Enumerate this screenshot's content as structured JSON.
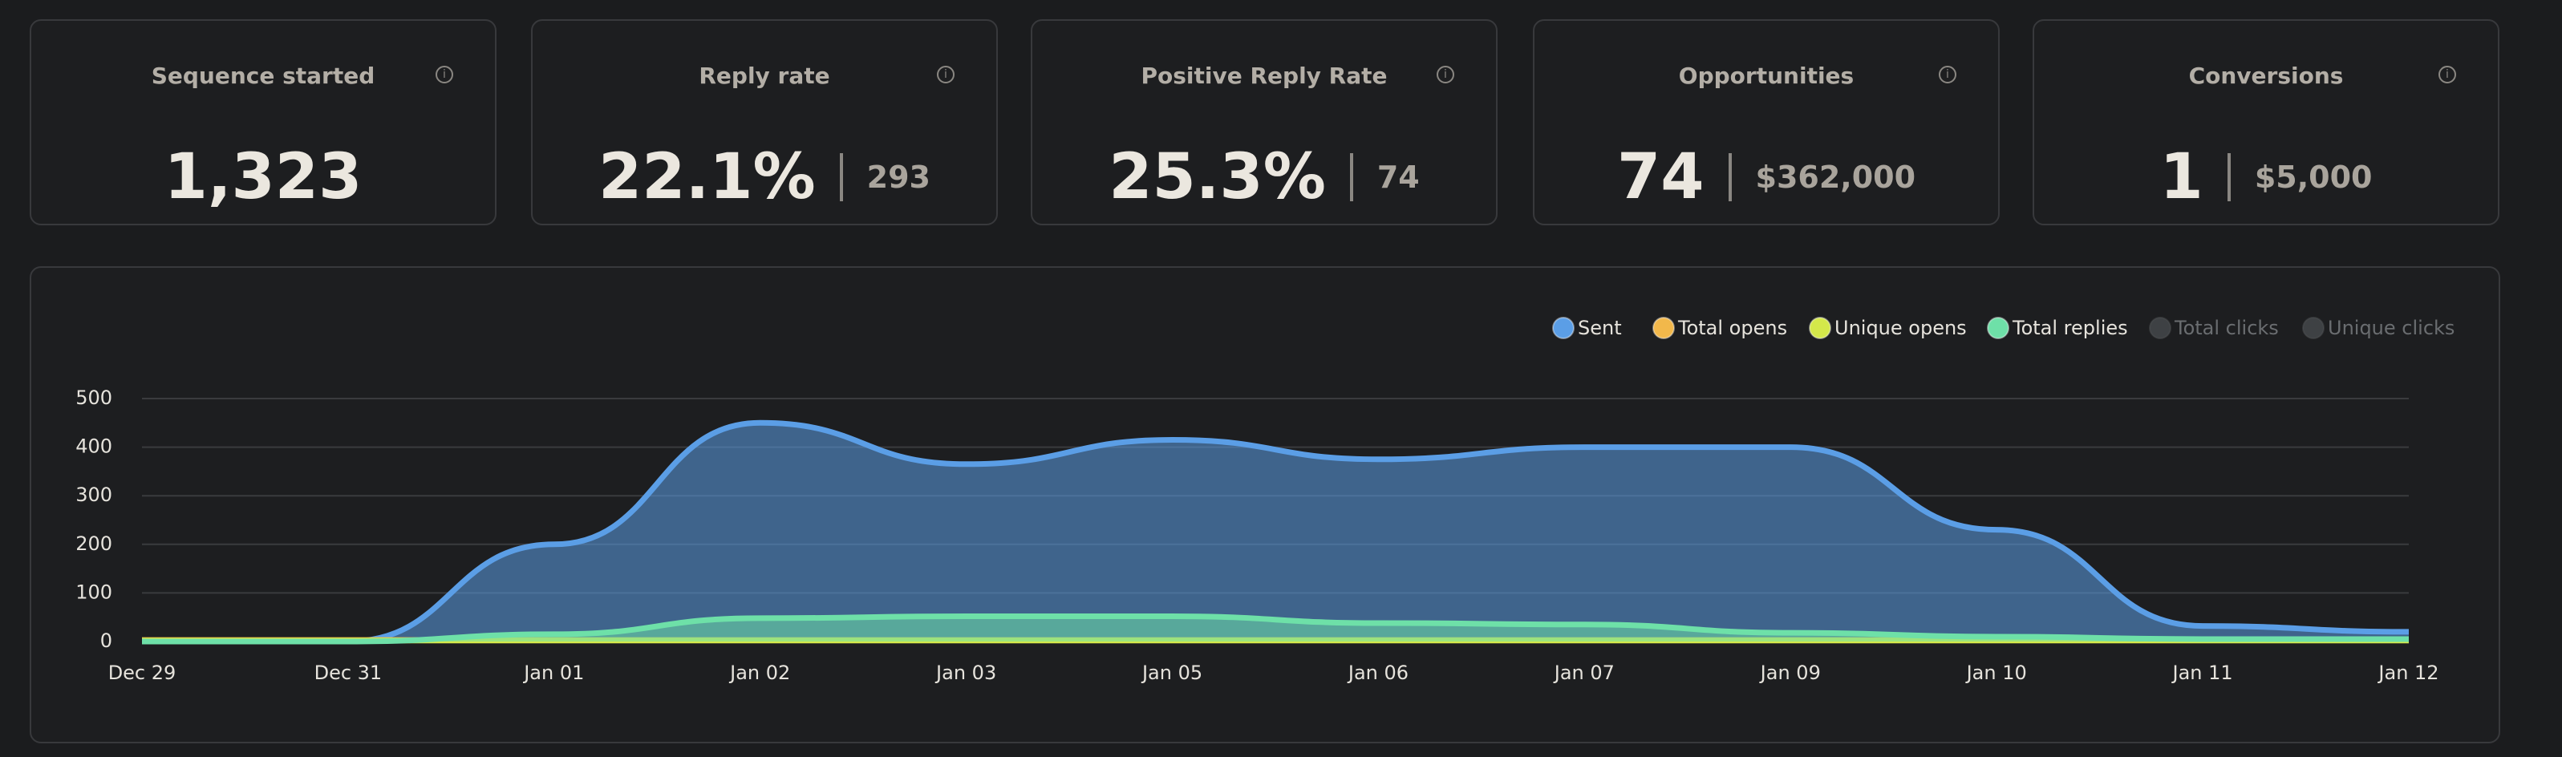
{
  "stats": [
    {
      "label": "Sequence started",
      "value": "1,323"
    },
    {
      "label": "Reply rate",
      "value": "22.1%",
      "secondary": "293"
    },
    {
      "label": "Positive Reply Rate",
      "value": "25.3%",
      "secondary": "74"
    },
    {
      "label": "Opportunities",
      "value": "74",
      "secondary": "$362,000"
    },
    {
      "label": "Conversions",
      "value": "1",
      "secondary": "$5,000"
    }
  ],
  "chart_data": {
    "type": "area",
    "categories": [
      "Dec 29",
      "Dec 31",
      "Jan 01",
      "Jan 02",
      "Jan 03",
      "Jan 05",
      "Jan 06",
      "Jan 07",
      "Jan 09",
      "Jan 10",
      "Jan 11",
      "Jan 12"
    ],
    "series": [
      {
        "name": "Sent",
        "color": "#5b9ee6",
        "values": [
          0,
          0,
          200,
          450,
          365,
          415,
          375,
          400,
          400,
          230,
          32,
          20
        ]
      },
      {
        "name": "Total opens",
        "color": "#f2b84b",
        "values": [
          3,
          3,
          3,
          3,
          3,
          3,
          3,
          3,
          3,
          3,
          3,
          3
        ]
      },
      {
        "name": "Unique opens",
        "color": "#d4e84a",
        "values": [
          2,
          2,
          2,
          2,
          2,
          2,
          2,
          2,
          2,
          2,
          2,
          2
        ]
      },
      {
        "name": "Total replies",
        "color": "#6ee0a8",
        "values": [
          0,
          0,
          15,
          48,
          52,
          52,
          38,
          35,
          18,
          10,
          5,
          5
        ]
      },
      {
        "name": "Total clicks",
        "color": "#3e4144",
        "hidden": true
      },
      {
        "name": "Unique clicks",
        "color": "#3e4144",
        "hidden": true
      }
    ],
    "ylim": [
      0,
      500
    ],
    "yticks": [
      0,
      100,
      200,
      300,
      400,
      500
    ],
    "grid": true,
    "legend": "top-right"
  }
}
